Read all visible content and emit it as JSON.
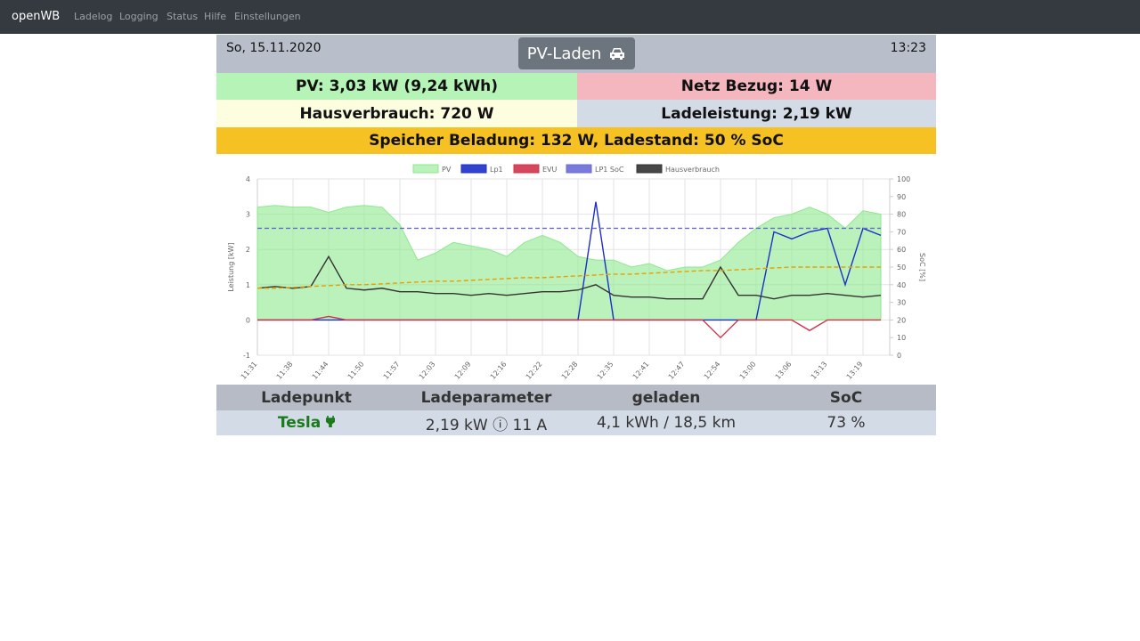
{
  "navbar": {
    "brand": "openWB",
    "links": [
      "Ladelog",
      "Logging",
      "Status",
      "Hilfe",
      "Einstellungen"
    ]
  },
  "header": {
    "date": "So, 15.11.2020",
    "mode": "PV-Laden",
    "time": "13:23"
  },
  "status": {
    "pv": "PV: 3,03 kW (9,24 kWh)",
    "grid": "Netz Bezug: 14 W",
    "house": "Hausverbrauch: 720 W",
    "charging": "Ladeleistung: 2,19 kW",
    "storage": "Speicher Beladung: 132 W, Ladestand: 50 % SoC"
  },
  "chart_data": {
    "type": "line",
    "y_label": "Leistung [kW]",
    "y2_label": "SoC [%]",
    "categories": [
      "11:31",
      null,
      "11:38",
      null,
      "11:44",
      null,
      "11:50",
      null,
      "11:57",
      null,
      "12:03",
      null,
      "12:09",
      null,
      "12:16",
      null,
      "12:22",
      null,
      "12:28",
      null,
      "12:35",
      null,
      "12:41",
      null,
      "12:47",
      null,
      "12:54",
      null,
      "13:00",
      null,
      "13:06",
      null,
      "13:13",
      null,
      "13:19",
      null
    ],
    "ylim": [
      -1,
      4
    ],
    "yticks": [
      -1,
      0,
      1,
      2,
      3,
      4
    ],
    "y2lim": [
      0,
      100
    ],
    "y2ticks": [
      0,
      10,
      20,
      30,
      40,
      50,
      60,
      70,
      80,
      90,
      100
    ],
    "grid": true,
    "legend": "top",
    "series": [
      {
        "name": "PV",
        "color": "#8ee88e",
        "fill": true,
        "values": [
          3.2,
          3.25,
          3.2,
          3.2,
          3.05,
          3.2,
          3.25,
          3.2,
          2.7,
          1.7,
          1.9,
          2.2,
          2.1,
          2.0,
          1.8,
          2.2,
          2.4,
          2.2,
          1.8,
          1.7,
          1.7,
          1.5,
          1.6,
          1.4,
          1.5,
          1.5,
          1.7,
          2.2,
          2.6,
          2.9,
          3.0,
          3.2,
          3.0,
          2.6,
          3.1,
          3.0
        ]
      },
      {
        "name": "Lp1",
        "color": "#1c2fc8",
        "values": [
          0,
          0,
          0,
          0,
          0,
          0,
          0,
          0,
          0,
          0,
          0,
          0,
          0,
          0,
          0,
          0,
          0,
          0,
          0,
          3.35,
          0,
          0,
          0,
          0,
          0,
          0,
          0,
          0,
          0,
          2.5,
          2.3,
          2.5,
          2.6,
          1.0,
          2.6,
          2.4
        ]
      },
      {
        "name": "EVU",
        "color": "#d0334a",
        "values": [
          0,
          0,
          0,
          0,
          0.1,
          0,
          0,
          0,
          0,
          0,
          0,
          0,
          0,
          0,
          0,
          0,
          0,
          0,
          0,
          0,
          0,
          0,
          0,
          0,
          0,
          0,
          -0.5,
          0,
          0,
          0,
          0,
          -0.3,
          0,
          0,
          0,
          0
        ]
      },
      {
        "name": "LP1 SoC",
        "color": "#6b6bd6",
        "dashed": true,
        "axis": "y2",
        "values": [
          72,
          72,
          72,
          72,
          72,
          72,
          72,
          72,
          72,
          72,
          72,
          72,
          72,
          72,
          72,
          72,
          72,
          72,
          72,
          72,
          72,
          72,
          72,
          72,
          72,
          72,
          72,
          72,
          72,
          72,
          72,
          72,
          72,
          72,
          72,
          72
        ]
      },
      {
        "name": "Hausverbrauch",
        "color": "#333333",
        "values": [
          0.9,
          0.95,
          0.9,
          0.95,
          1.8,
          0.9,
          0.85,
          0.9,
          0.8,
          0.8,
          0.75,
          0.75,
          0.7,
          0.75,
          0.7,
          0.75,
          0.8,
          0.8,
          0.85,
          1.0,
          0.7,
          0.65,
          0.65,
          0.6,
          0.6,
          0.6,
          1.5,
          0.7,
          0.7,
          0.6,
          0.7,
          0.7,
          0.75,
          0.7,
          0.65,
          0.7
        ]
      },
      {
        "color": "#e8a000",
        "dashed": true,
        "axis": "y2",
        "values": [
          38,
          38,
          38.5,
          39,
          39.5,
          40,
          40,
          40.5,
          41,
          41.5,
          42,
          42,
          42.5,
          43,
          43.5,
          44,
          44,
          44.5,
          45,
          45.5,
          46,
          46,
          46.5,
          47,
          47.5,
          48,
          48,
          48.5,
          49,
          49.5,
          50,
          50,
          50,
          50,
          50,
          50
        ]
      }
    ]
  },
  "table": {
    "headers": [
      "Ladepunkt",
      "Ladeparameter",
      "geladen",
      "SoC"
    ],
    "rows": [
      [
        "Tesla",
        "2,19 kW ⓘ 11 A",
        "4,1 kWh / 18,5 km",
        "73 %"
      ]
    ]
  }
}
